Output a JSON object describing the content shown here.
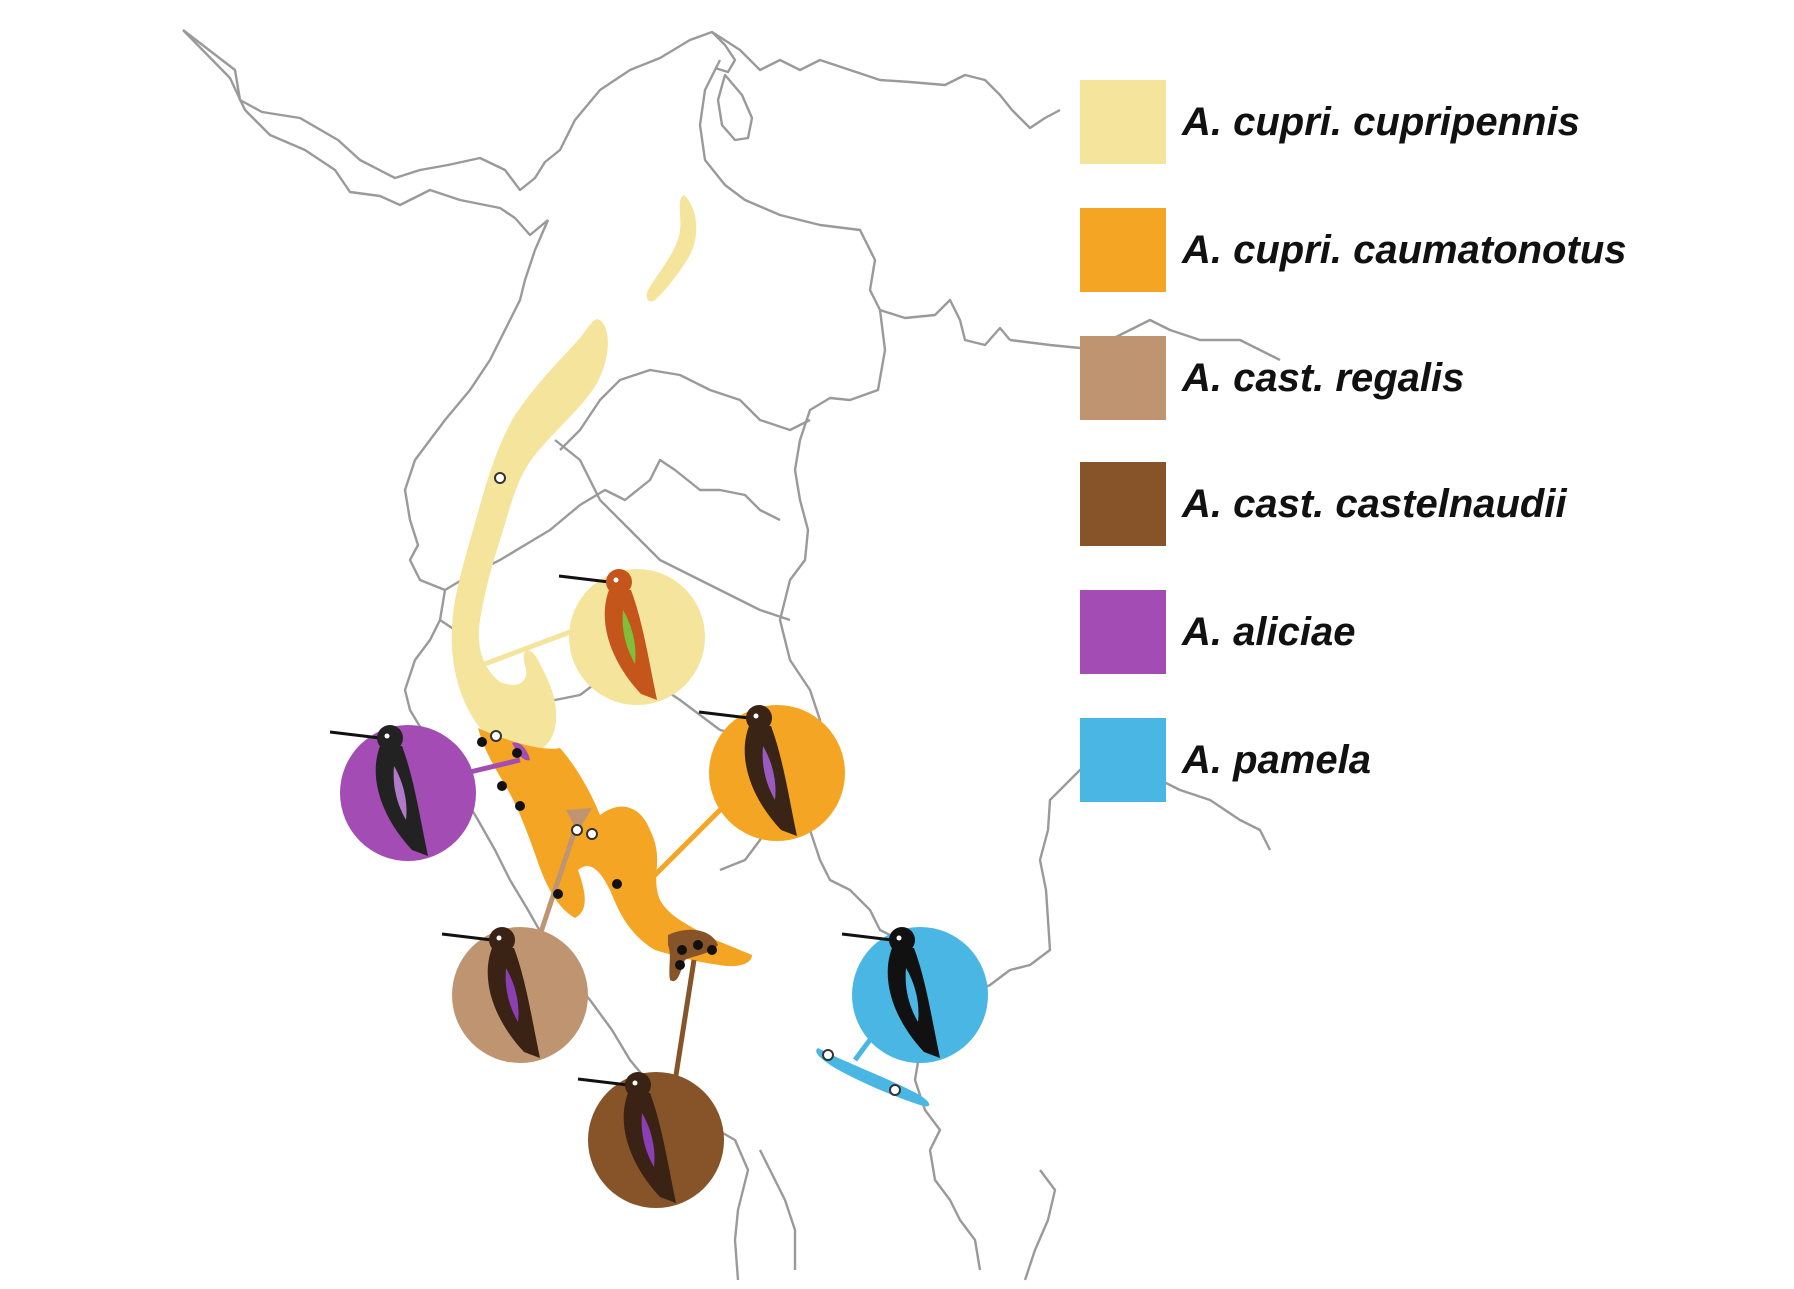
{
  "legend": {
    "items": [
      {
        "label": "A. cupri. cupripennis",
        "color": "#f5e49c"
      },
      {
        "label": "A. cupri. caumatonotus",
        "color": "#f4a523"
      },
      {
        "label": "A. cast. regalis",
        "color": "#bf9571"
      },
      {
        "label": "A. cast. castelnaudii",
        "color": "#87542a"
      },
      {
        "label": "A. aliciae",
        "color": "#a24cb4"
      },
      {
        "label": "A. pamela",
        "color": "#49b6e3"
      }
    ]
  },
  "map": {
    "border_color": "#9a9a9a",
    "range_colors": {
      "cupripennis": "#f5e49c",
      "caumatonotus": "#f4a523",
      "regalis": "#bf9571",
      "castelnaudii": "#87542a",
      "aliciae": "#a24cb4",
      "pamela": "#49b6e3"
    },
    "icons": [
      "hummingbird-icon"
    ]
  }
}
